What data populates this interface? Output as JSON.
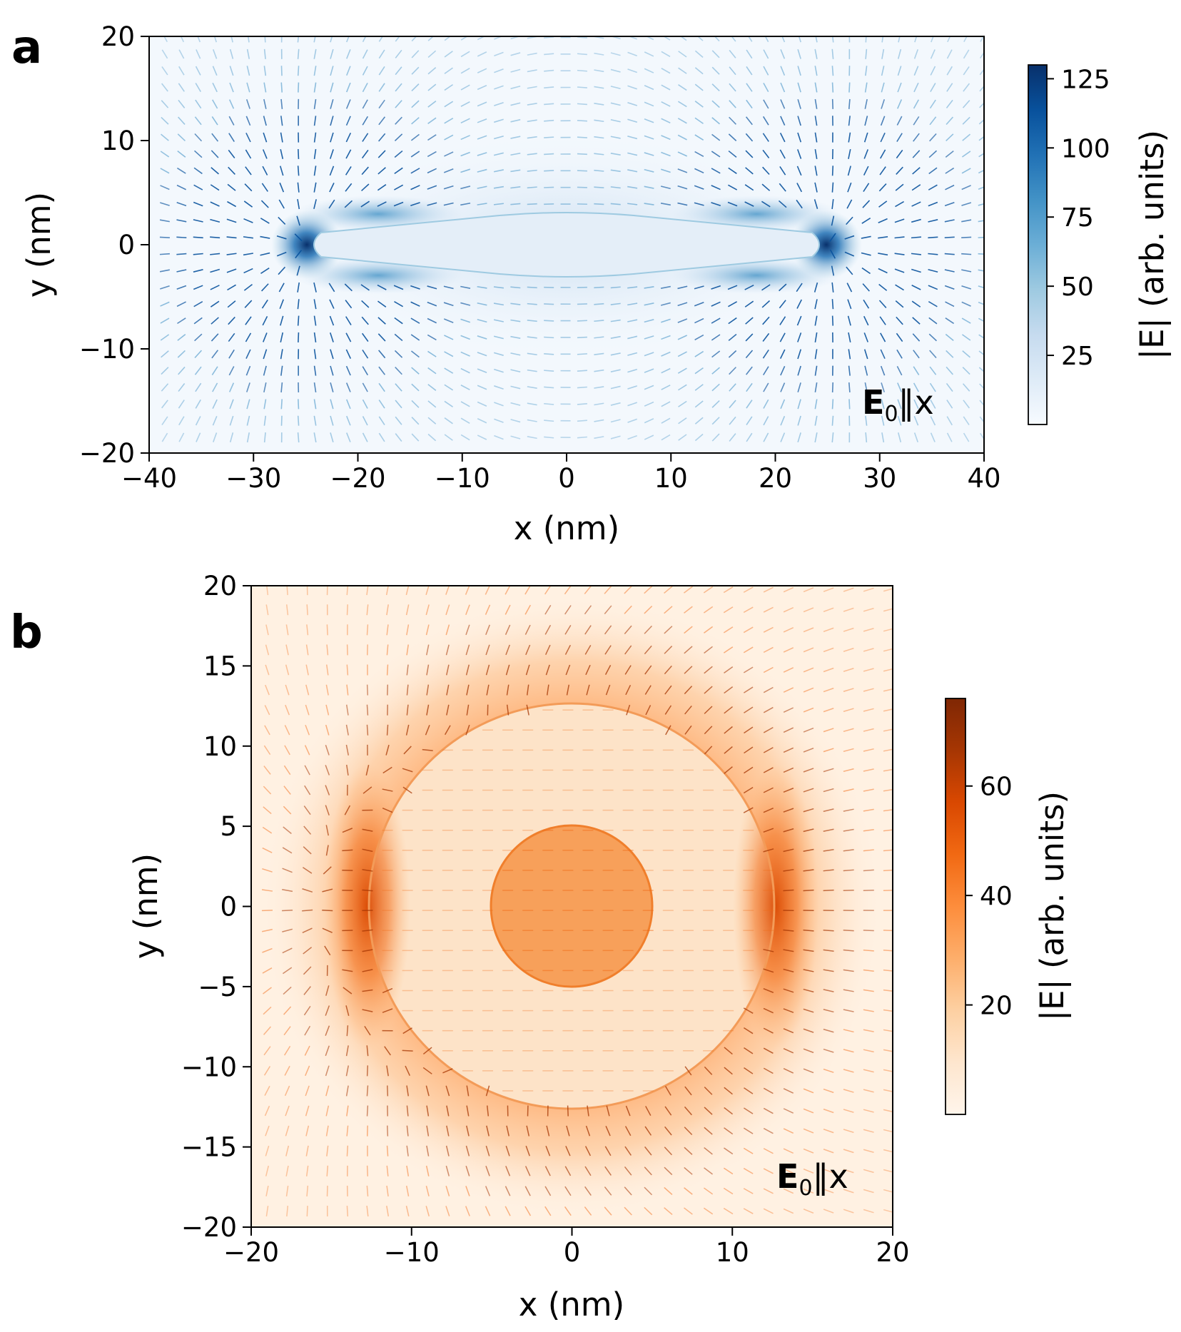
{
  "chart_data": [
    {
      "panel": "a",
      "type": "heatmap",
      "title": "",
      "xlabel": "x (nm)",
      "ylabel": "y (nm)",
      "xlim": [
        -40,
        40
      ],
      "ylim": [
        -20,
        20
      ],
      "xticks": [
        -40,
        -30,
        -20,
        -10,
        0,
        10,
        20,
        30,
        40
      ],
      "xtick_labels": [
        "−40",
        "−30",
        "−20",
        "−10",
        "0",
        "10",
        "20",
        "30",
        "40"
      ],
      "yticks": [
        -20,
        -10,
        0,
        10,
        20
      ],
      "ytick_labels": [
        "−20",
        "−10",
        "0",
        "10",
        "20"
      ],
      "annotation": {
        "bold": "E",
        "sub": "0",
        "rest": "‖x"
      },
      "colorbar": {
        "label": "|E| (arb. units)",
        "colormap": "Blues",
        "range": [
          0,
          130
        ],
        "ticks": [
          25,
          50,
          75,
          100,
          125
        ],
        "tick_labels": [
          "25",
          "50",
          "75",
          "100",
          "125"
        ],
        "colors": [
          "#f7fbff",
          "#deebf7",
          "#c6dbef",
          "#9ecae1",
          "#6baed6",
          "#4292c6",
          "#2171b5",
          "#08519c",
          "#08306b"
        ]
      },
      "structure": {
        "shape": "rod",
        "center": [
          0,
          0
        ],
        "half_length": 25,
        "half_width": 3
      },
      "field_peak_locations": [
        [
          -25,
          0
        ],
        [
          25,
          0
        ]
      ]
    },
    {
      "panel": "b",
      "type": "heatmap",
      "title": "",
      "xlabel": "x (nm)",
      "ylabel": "y (nm)",
      "xlim": [
        -20,
        20
      ],
      "ylim": [
        -20,
        20
      ],
      "xticks": [
        -20,
        -10,
        0,
        10,
        20
      ],
      "xtick_labels": [
        "−20",
        "−10",
        "0",
        "10",
        "20"
      ],
      "yticks": [
        -20,
        -15,
        -10,
        -5,
        0,
        5,
        10,
        15,
        20
      ],
      "ytick_labels": [
        "−20",
        "−15",
        "−10",
        "−5",
        "0",
        "5",
        "10",
        "15",
        "20"
      ],
      "annotation": {
        "bold": "E",
        "sub": "0",
        "rest": "‖x"
      },
      "colorbar": {
        "label": "|E| (arb. units)",
        "colormap": "Oranges",
        "range": [
          0,
          76
        ],
        "ticks": [
          20,
          40,
          60
        ],
        "tick_labels": [
          "20",
          "40",
          "60"
        ],
        "colors": [
          "#fff5eb",
          "#fee6ce",
          "#fdd0a2",
          "#fdae6b",
          "#fd8d3c",
          "#f16913",
          "#d94801",
          "#a63603",
          "#7f2704"
        ]
      },
      "structure": {
        "shape": "core-shell",
        "center": [
          0,
          0
        ],
        "shell_radius": 12.5,
        "core_radius": 5
      },
      "field_peak_locations": [
        [
          -12.5,
          0
        ],
        [
          12.5,
          0
        ]
      ]
    }
  ]
}
